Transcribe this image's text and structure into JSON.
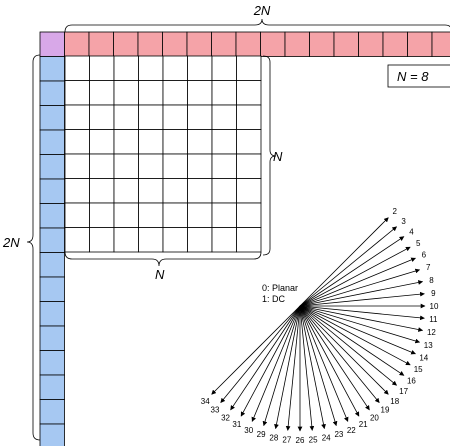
{
  "figure": {
    "n_value": 8,
    "labels": {
      "top_span": "2N",
      "left_span": "2N",
      "block_right": "N",
      "block_bottom": "N",
      "n_box": "N = 8"
    },
    "colors": {
      "corner_cell": "#d8a8e8",
      "top_row": "#f5a3a8",
      "left_column": "#a6c8f2",
      "grid_line": "#000000"
    },
    "modes": {
      "planar": "0: Planar",
      "dc": "1: DC",
      "angular": [
        "2",
        "3",
        "4",
        "5",
        "6",
        "7",
        "8",
        "9",
        "10",
        "11",
        "12",
        "13",
        "14",
        "15",
        "16",
        "17",
        "18",
        "19",
        "20",
        "21",
        "22",
        "23",
        "24",
        "25",
        "26",
        "27",
        "28",
        "29",
        "30",
        "31",
        "32",
        "33",
        "34"
      ]
    }
  }
}
